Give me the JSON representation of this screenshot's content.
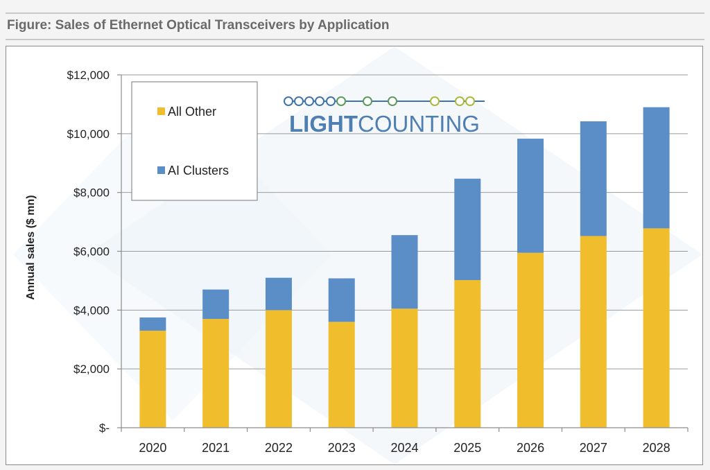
{
  "figure_title": "Figure: Sales of Ethernet Optical Transceivers by Application",
  "logo": {
    "text_bold": "LIGHT",
    "text_regular": "COUNTING",
    "text_color": "#4e7fb3",
    "dots_colors": [
      "#3f73ad",
      "#5b9a5a",
      "#a9b93c"
    ]
  },
  "colors": {
    "all_other": "#f0bd2d",
    "ai_clusters": "#5b8dc6",
    "background": "#f4f4f4",
    "panel": "#ffffff"
  },
  "chart_data": {
    "type": "bar",
    "stacked": true,
    "title": "",
    "xlabel": "",
    "ylabel": "Annual sales ($ mn)",
    "categories": [
      "2020",
      "2021",
      "2022",
      "2023",
      "2024",
      "2025",
      "2026",
      "2027",
      "2028"
    ],
    "series": [
      {
        "name": "All Other",
        "color": "#f0bd2d",
        "values": [
          3300,
          3700,
          4000,
          3600,
          4050,
          5020,
          5950,
          6520,
          6780
        ]
      },
      {
        "name": "AI Clusters",
        "color": "#5b8dc6",
        "values": [
          450,
          1000,
          1100,
          1480,
          2500,
          3450,
          3880,
          3900,
          4120
        ]
      }
    ],
    "ylim": [
      0,
      12000
    ],
    "yticks": [
      0,
      2000,
      4000,
      6000,
      8000,
      10000,
      12000
    ],
    "ytick_labels": [
      "$-",
      "$2,000",
      "$4,000",
      "$6,000",
      "$8,000",
      "$10,000",
      "$12,000"
    ],
    "grid": true,
    "legend_placement": "top-left",
    "legend_order": [
      "All Other",
      "AI Clusters"
    ]
  }
}
